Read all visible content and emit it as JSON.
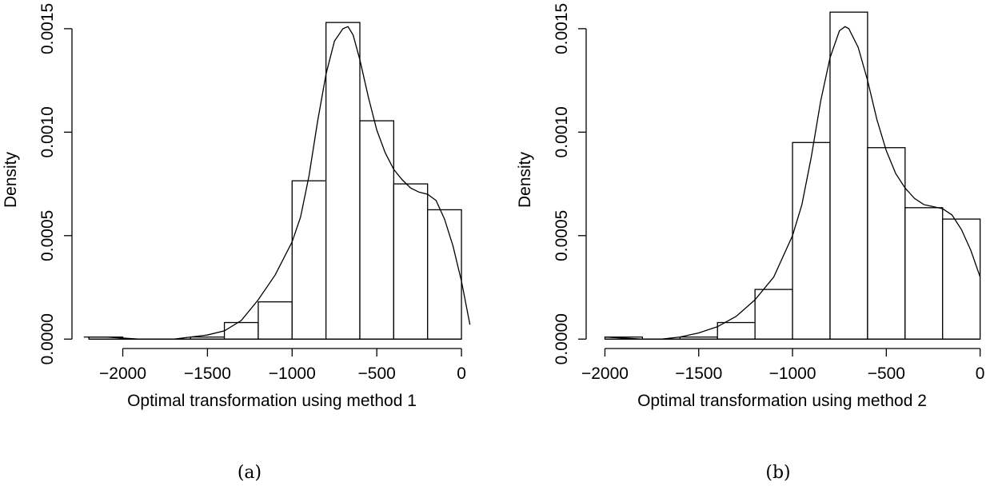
{
  "chart_data": [
    {
      "type": "bar",
      "caption": "(a)",
      "xlabel": "Optimal transformation using method 1",
      "ylabel": "Density",
      "xlim": [
        -2300,
        80
      ],
      "ylim": [
        -3e-05,
        0.0016
      ],
      "x_ticks": [
        "-2000",
        "-1500",
        "-1000",
        "-500",
        "0"
      ],
      "x_tick_values": [
        -2000,
        -1500,
        -1000,
        -500,
        0
      ],
      "y_ticks": [
        "0.0000",
        "0.0005",
        "0.0010",
        "0.0015"
      ],
      "y_tick_values": [
        0,
        0.0005,
        0.001,
        0.0015
      ],
      "bins": [
        {
          "x0": -2200,
          "x1": -2000,
          "density": 1e-05
        },
        {
          "x0": -2000,
          "x1": -1800,
          "density": 0.0
        },
        {
          "x0": -1800,
          "x1": -1600,
          "density": 0.0
        },
        {
          "x0": -1600,
          "x1": -1400,
          "density": 1e-05
        },
        {
          "x0": -1400,
          "x1": -1200,
          "density": 8e-05
        },
        {
          "x0": -1200,
          "x1": -1000,
          "density": 0.00018
        },
        {
          "x0": -1000,
          "x1": -800,
          "density": 0.000765
        },
        {
          "x0": -800,
          "x1": -600,
          "density": 0.00153
        },
        {
          "x0": -600,
          "x1": -400,
          "density": 0.001055
        },
        {
          "x0": -400,
          "x1": -200,
          "density": 0.00075
        },
        {
          "x0": -200,
          "x1": 0,
          "density": 0.000625
        }
      ],
      "density_curve": {
        "x": [
          -2230,
          -2100,
          -2000,
          -1900,
          -1800,
          -1700,
          -1600,
          -1500,
          -1400,
          -1300,
          -1200,
          -1100,
          -1000,
          -950,
          -900,
          -850,
          -800,
          -750,
          -700,
          -670,
          -640,
          -600,
          -550,
          -500,
          -450,
          -400,
          -350,
          -300,
          -250,
          -200,
          -150,
          -100,
          -50,
          0,
          50
        ],
        "y": [
          1e-05,
          1e-05,
          5e-06,
          0.0,
          0.0,
          0.0,
          1e-05,
          2e-05,
          4e-05,
          9e-05,
          0.00019,
          0.00031,
          0.00047,
          0.00059,
          0.00079,
          0.00105,
          0.00128,
          0.00144,
          0.0015,
          0.00151,
          0.00147,
          0.00135,
          0.00117,
          0.00101,
          0.0009,
          0.00082,
          0.00077,
          0.00073,
          0.00071,
          0.0007,
          0.00067,
          0.00058,
          0.00045,
          0.00028,
          7e-05
        ]
      }
    },
    {
      "type": "bar",
      "caption": "(b)",
      "xlabel": "Optimal transformation using method 2",
      "ylabel": "Density",
      "xlim": [
        -2100,
        10
      ],
      "ylim": [
        -3e-05,
        0.0016
      ],
      "x_ticks": [
        "-2000",
        "-1500",
        "-1000",
        "-500",
        "0"
      ],
      "x_tick_values": [
        -2000,
        -1500,
        -1000,
        -500,
        0
      ],
      "y_ticks": [
        "0.0000",
        "0.0005",
        "0.0010",
        "0.0015"
      ],
      "y_tick_values": [
        0,
        0.0005,
        0.001,
        0.0015
      ],
      "bins": [
        {
          "x0": -2000,
          "x1": -1800,
          "density": 1e-05
        },
        {
          "x0": -1800,
          "x1": -1600,
          "density": 0.0
        },
        {
          "x0": -1600,
          "x1": -1400,
          "density": 1e-05
        },
        {
          "x0": -1400,
          "x1": -1200,
          "density": 8e-05
        },
        {
          "x0": -1200,
          "x1": -1000,
          "density": 0.00024
        },
        {
          "x0": -1000,
          "x1": -800,
          "density": 0.00095
        },
        {
          "x0": -800,
          "x1": -600,
          "density": 0.00158
        },
        {
          "x0": -600,
          "x1": -400,
          "density": 0.000925
        },
        {
          "x0": -400,
          "x1": -200,
          "density": 0.000635
        },
        {
          "x0": -200,
          "x1": 0,
          "density": 0.00058
        }
      ],
      "density_curve": {
        "x": [
          -2000,
          -1900,
          -1800,
          -1700,
          -1600,
          -1500,
          -1400,
          -1300,
          -1200,
          -1100,
          -1000,
          -950,
          -900,
          -850,
          -800,
          -750,
          -720,
          -700,
          -650,
          -600,
          -550,
          -500,
          -450,
          -400,
          -350,
          -300,
          -250,
          -200,
          -150,
          -100,
          -50,
          0
        ],
        "y": [
          1e-05,
          5e-06,
          0.0,
          0.0,
          1e-05,
          3e-05,
          6e-05,
          0.00011,
          0.00019,
          0.0003,
          0.0005,
          0.00065,
          0.00088,
          0.00115,
          0.00136,
          0.00149,
          0.00151,
          0.0015,
          0.00141,
          0.00125,
          0.00106,
          0.00091,
          0.0008,
          0.00073,
          0.00068,
          0.00065,
          0.00064,
          0.00063,
          0.0006,
          0.00053,
          0.00043,
          0.0003
        ]
      }
    }
  ]
}
